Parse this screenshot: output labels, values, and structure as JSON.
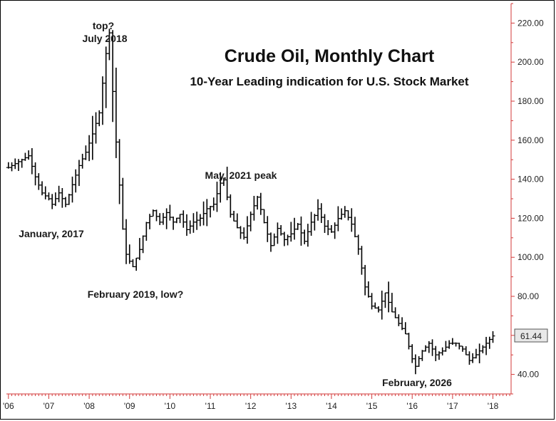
{
  "chart_data": {
    "type": "bar",
    "subtype": "ohlc",
    "title": "Crude Oil, Monthly Chart",
    "subtitle": "10-Year Leading indication for U.S. Stock Market",
    "ylim": [
      30,
      230
    ],
    "yticks": [
      40,
      60,
      80,
      100,
      120,
      140,
      160,
      180,
      200,
      220
    ],
    "ytick_labels": [
      "40.00",
      "60.00",
      "80.00",
      "100.00",
      "120.00",
      "140.00",
      "160.00",
      "180.00",
      "200.00",
      "220.00"
    ],
    "xticks": [
      {
        "x": 2006,
        "label": "'06"
      },
      {
        "x": 2007,
        "label": "'07"
      },
      {
        "x": 2008,
        "label": "'08"
      },
      {
        "x": 2009,
        "label": "'09"
      },
      {
        "x": 2010,
        "label": "'10"
      },
      {
        "x": 2011,
        "label": "'11"
      },
      {
        "x": 2012,
        "label": "'12"
      },
      {
        "x": 2013,
        "label": "'13"
      },
      {
        "x": 2014,
        "label": "'14"
      },
      {
        "x": 2015,
        "label": "'15"
      },
      {
        "x": 2016,
        "label": "'16"
      },
      {
        "x": 2017,
        "label": "'17"
      },
      {
        "x": 2018,
        "label": "'18"
      }
    ],
    "xlim": [
      2005.95,
      2018.45
    ],
    "last_price": "61.44",
    "closes": [
      {
        "x": 2006.0,
        "v": 146
      },
      {
        "x": 2006.5,
        "v": 152
      },
      {
        "x": 2006.67,
        "v": 141
      },
      {
        "x": 2006.83,
        "v": 133
      },
      {
        "x": 2007.0,
        "v": 130
      },
      {
        "x": 2007.08,
        "v": 127
      },
      {
        "x": 2007.25,
        "v": 133
      },
      {
        "x": 2007.42,
        "v": 127
      },
      {
        "x": 2007.58,
        "v": 137
      },
      {
        "x": 2007.75,
        "v": 147
      },
      {
        "x": 2007.92,
        "v": 154
      },
      {
        "x": 2008.08,
        "v": 163
      },
      {
        "x": 2008.25,
        "v": 174
      },
      {
        "x": 2008.42,
        "v": 205
      },
      {
        "x": 2008.5,
        "v": 215
      },
      {
        "x": 2008.58,
        "v": 186
      },
      {
        "x": 2008.67,
        "v": 158
      },
      {
        "x": 2008.75,
        "v": 137
      },
      {
        "x": 2008.83,
        "v": 115
      },
      {
        "x": 2008.92,
        "v": 101
      },
      {
        "x": 2009.08,
        "v": 95
      },
      {
        "x": 2009.25,
        "v": 104
      },
      {
        "x": 2009.42,
        "v": 118
      },
      {
        "x": 2009.58,
        "v": 124
      },
      {
        "x": 2009.75,
        "v": 118
      },
      {
        "x": 2009.92,
        "v": 123
      },
      {
        "x": 2010.08,
        "v": 118
      },
      {
        "x": 2010.25,
        "v": 122
      },
      {
        "x": 2010.42,
        "v": 114
      },
      {
        "x": 2010.58,
        "v": 118
      },
      {
        "x": 2010.75,
        "v": 120
      },
      {
        "x": 2010.92,
        "v": 125
      },
      {
        "x": 2011.08,
        "v": 127
      },
      {
        "x": 2011.25,
        "v": 138
      },
      {
        "x": 2011.33,
        "v": 140
      },
      {
        "x": 2011.5,
        "v": 122
      },
      {
        "x": 2011.67,
        "v": 115
      },
      {
        "x": 2011.83,
        "v": 110
      },
      {
        "x": 2012.0,
        "v": 122
      },
      {
        "x": 2012.17,
        "v": 131
      },
      {
        "x": 2012.33,
        "v": 118
      },
      {
        "x": 2012.5,
        "v": 106
      },
      {
        "x": 2012.67,
        "v": 115
      },
      {
        "x": 2012.83,
        "v": 109
      },
      {
        "x": 2013.0,
        "v": 112
      },
      {
        "x": 2013.17,
        "v": 117
      },
      {
        "x": 2013.33,
        "v": 108
      },
      {
        "x": 2013.5,
        "v": 118
      },
      {
        "x": 2013.67,
        "v": 125
      },
      {
        "x": 2013.83,
        "v": 116
      },
      {
        "x": 2014.0,
        "v": 113
      },
      {
        "x": 2014.17,
        "v": 120
      },
      {
        "x": 2014.33,
        "v": 124
      },
      {
        "x": 2014.5,
        "v": 117
      },
      {
        "x": 2014.67,
        "v": 104
      },
      {
        "x": 2014.83,
        "v": 85
      },
      {
        "x": 2015.0,
        "v": 75
      },
      {
        "x": 2015.17,
        "v": 73
      },
      {
        "x": 2015.33,
        "v": 82
      },
      {
        "x": 2015.5,
        "v": 72
      },
      {
        "x": 2015.67,
        "v": 66
      },
      {
        "x": 2015.83,
        "v": 61
      },
      {
        "x": 2016.0,
        "v": 48
      },
      {
        "x": 2016.08,
        "v": 44
      },
      {
        "x": 2016.25,
        "v": 52
      },
      {
        "x": 2016.42,
        "v": 56
      },
      {
        "x": 2016.58,
        "v": 50
      },
      {
        "x": 2016.75,
        "v": 52
      },
      {
        "x": 2016.92,
        "v": 56
      },
      {
        "x": 2017.08,
        "v": 56
      },
      {
        "x": 2017.25,
        "v": 53
      },
      {
        "x": 2017.42,
        "v": 47
      },
      {
        "x": 2017.58,
        "v": 50
      },
      {
        "x": 2017.75,
        "v": 54
      },
      {
        "x": 2017.92,
        "v": 58
      },
      {
        "x": 2018.08,
        "v": 61.44
      }
    ]
  },
  "annotations": {
    "top": "top?",
    "july2018": "July 2018",
    "jan2017": "January, 2017",
    "may2021": "May, 2021 peak",
    "feb2019": "February 2019, low?",
    "feb2026": "February, 2026"
  },
  "colors": {
    "axis": "#d33a3a",
    "bars": "#000000",
    "price_box": "#e8e8e8"
  }
}
